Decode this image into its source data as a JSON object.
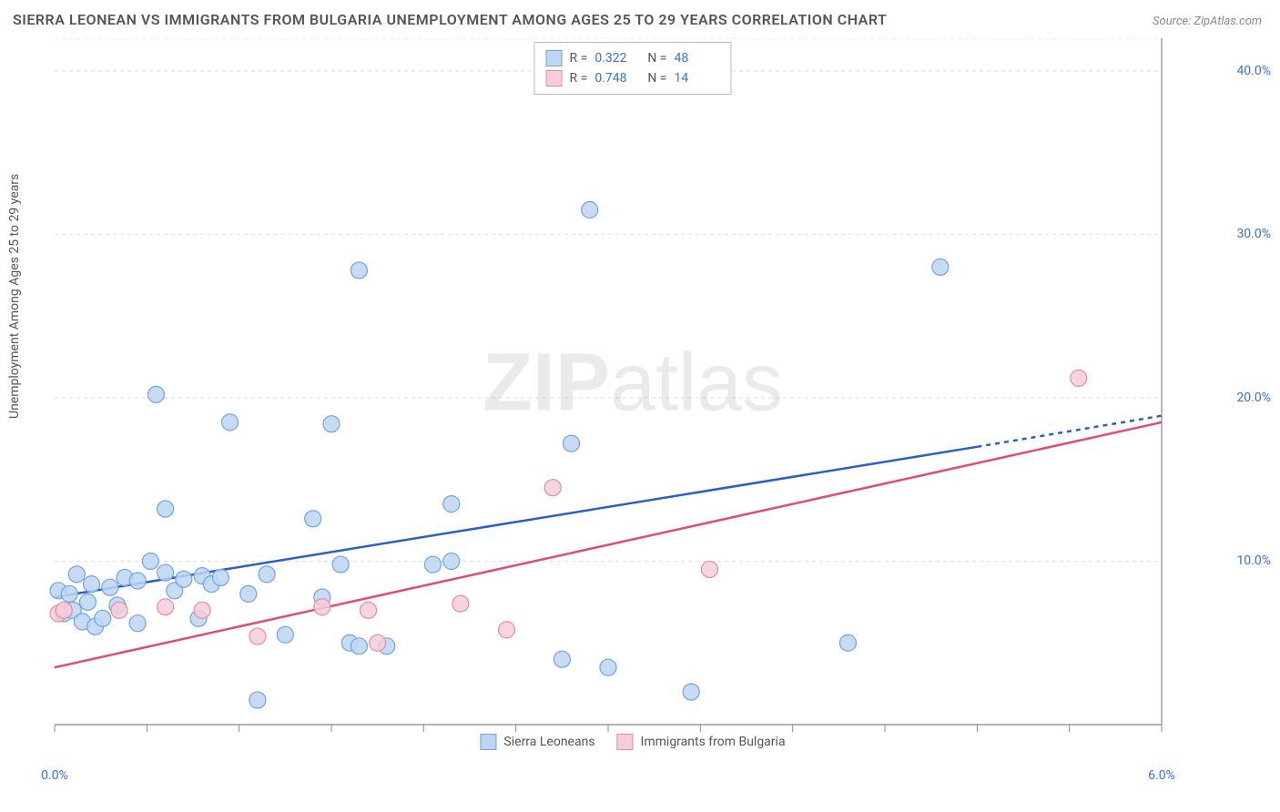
{
  "title": "SIERRA LEONEAN VS IMMIGRANTS FROM BULGARIA UNEMPLOYMENT AMONG AGES 25 TO 29 YEARS CORRELATION CHART",
  "source": "Source: ZipAtlas.com",
  "ylabel": "Unemployment Among Ages 25 to 29 years",
  "watermark_a": "ZIP",
  "watermark_b": "atlas",
  "chart": {
    "type": "scatter",
    "background_color": "#ffffff",
    "grid_color": "#dddddd",
    "axis_color": "#888888",
    "tick_color": "#888888",
    "xlim": [
      0.0,
      6.0
    ],
    "ylim": [
      0.0,
      42.0
    ],
    "xticks": [
      0.0,
      0.5,
      1.0,
      1.5,
      2.0,
      2.5,
      3.0,
      3.5,
      4.0,
      4.5,
      5.0,
      5.5,
      6.0
    ],
    "xtick_labels": {
      "0": "0.0%",
      "12": "6.0%"
    },
    "yticks": [
      10.0,
      20.0,
      30.0,
      40.0
    ],
    "ytick_labels": [
      "10.0%",
      "20.0%",
      "30.0%",
      "40.0%"
    ],
    "grid_dash": "4 4",
    "series": [
      {
        "name": "Sierra Leoneans",
        "marker_fill": "#bdd6f2",
        "marker_stroke": "#6ea4e0",
        "marker_radius": 9,
        "line_color": "#2a5fc9",
        "line_width": 2.5,
        "line_dash_tail": "5 5",
        "r": "0.322",
        "n": "48",
        "trend": {
          "x1": 0.0,
          "y1": 7.8,
          "x2": 5.0,
          "y2": 17.0,
          "x2_ext": 6.0,
          "y2_ext": 18.9
        },
        "points": [
          [
            0.02,
            8.2
          ],
          [
            0.05,
            6.8
          ],
          [
            0.08,
            8.0
          ],
          [
            0.1,
            7.0
          ],
          [
            0.12,
            9.2
          ],
          [
            0.15,
            6.3
          ],
          [
            0.18,
            7.5
          ],
          [
            0.2,
            8.6
          ],
          [
            0.22,
            6.0
          ],
          [
            0.26,
            6.5
          ],
          [
            0.3,
            8.4
          ],
          [
            0.34,
            7.3
          ],
          [
            0.38,
            9.0
          ],
          [
            0.45,
            8.8
          ],
          [
            0.45,
            6.2
          ],
          [
            0.52,
            10.0
          ],
          [
            0.6,
            9.3
          ],
          [
            0.6,
            13.2
          ],
          [
            0.65,
            8.2
          ],
          [
            0.55,
            20.2
          ],
          [
            0.7,
            8.9
          ],
          [
            0.78,
            6.5
          ],
          [
            0.8,
            9.1
          ],
          [
            0.85,
            8.6
          ],
          [
            0.9,
            9.0
          ],
          [
            0.95,
            18.5
          ],
          [
            1.05,
            8.0
          ],
          [
            1.1,
            1.5
          ],
          [
            1.15,
            9.2
          ],
          [
            1.25,
            5.5
          ],
          [
            1.4,
            12.6
          ],
          [
            1.45,
            7.8
          ],
          [
            1.5,
            18.4
          ],
          [
            1.55,
            9.8
          ],
          [
            1.6,
            5.0
          ],
          [
            1.65,
            4.8
          ],
          [
            1.65,
            27.8
          ],
          [
            1.8,
            4.8
          ],
          [
            2.05,
            9.8
          ],
          [
            2.15,
            10.0
          ],
          [
            2.15,
            13.5
          ],
          [
            2.75,
            4.0
          ],
          [
            2.8,
            17.2
          ],
          [
            2.9,
            31.5
          ],
          [
            3.0,
            3.5
          ],
          [
            3.45,
            2.0
          ],
          [
            4.3,
            5.0
          ],
          [
            4.8,
            28.0
          ]
        ]
      },
      {
        "name": "Immigrants from Bulgaria",
        "marker_fill": "#f6cdd9",
        "marker_stroke": "#e88aa5",
        "marker_radius": 9,
        "line_color": "#e24a77",
        "line_width": 2.5,
        "r": "0.748",
        "n": "14",
        "trend": {
          "x1": 0.0,
          "y1": 3.5,
          "x2": 6.0,
          "y2": 18.5
        },
        "points": [
          [
            0.02,
            6.8
          ],
          [
            0.05,
            7.0
          ],
          [
            0.35,
            7.0
          ],
          [
            0.6,
            7.2
          ],
          [
            0.8,
            7.0
          ],
          [
            1.1,
            5.4
          ],
          [
            1.45,
            7.2
          ],
          [
            1.7,
            7.0
          ],
          [
            1.75,
            5.0
          ],
          [
            2.2,
            7.4
          ],
          [
            2.45,
            5.8
          ],
          [
            2.7,
            14.5
          ],
          [
            3.55,
            9.5
          ],
          [
            5.55,
            21.2
          ]
        ]
      }
    ],
    "legend_bottom": [
      {
        "label": "Sierra Leoneans",
        "fill": "#bdd6f2",
        "stroke": "#6ea4e0"
      },
      {
        "label": "Immigrants from Bulgaria",
        "fill": "#f6cdd9",
        "stroke": "#e88aa5"
      }
    ]
  }
}
